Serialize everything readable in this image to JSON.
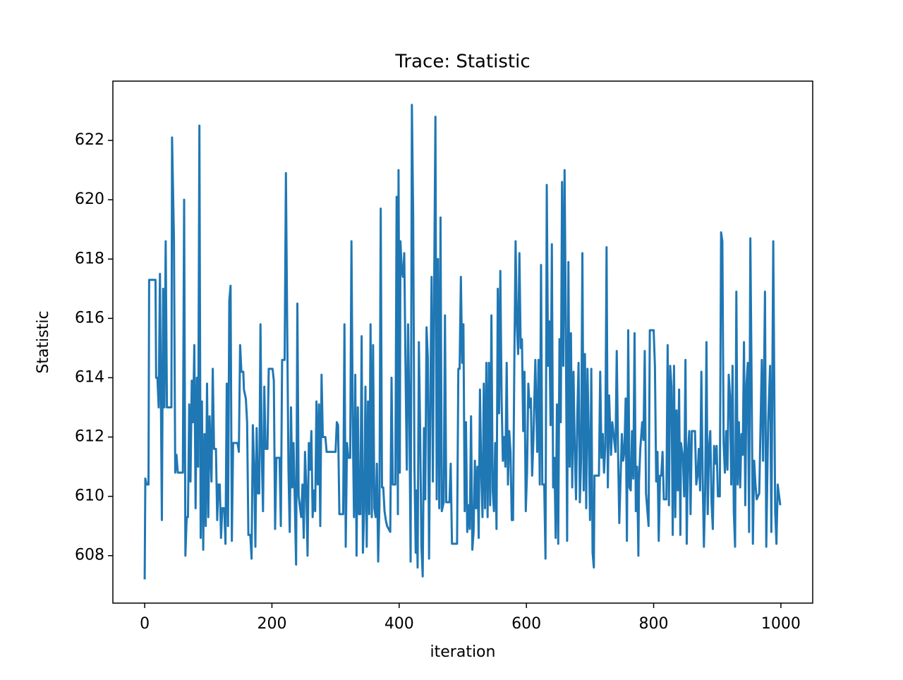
{
  "chart_data": {
    "type": "line",
    "title": "Trace: Statistic",
    "xlabel": "iteration",
    "ylabel": "Statistic",
    "x": [
      0,
      1,
      3,
      6,
      7,
      17,
      18,
      20,
      22,
      24,
      27,
      29,
      31,
      33,
      35,
      42,
      43,
      46,
      48,
      50,
      52,
      60,
      62,
      64,
      66,
      68,
      70,
      72,
      74,
      76,
      78,
      80,
      82,
      84,
      86,
      88,
      90,
      92,
      94,
      96,
      98,
      100,
      102,
      105,
      107,
      109,
      112,
      114,
      116,
      118,
      120,
      122,
      125,
      127,
      129,
      131,
      133,
      135,
      137,
      139,
      146,
      148,
      150,
      152,
      155,
      156,
      159,
      161,
      163,
      166,
      168,
      170,
      172,
      174,
      176,
      178,
      180,
      182,
      184,
      186,
      188,
      190,
      193,
      195,
      201,
      203,
      205,
      207,
      212,
      214,
      216,
      220,
      222,
      224,
      226,
      228,
      230,
      232,
      234,
      238,
      240,
      242,
      246,
      248,
      250,
      252,
      254,
      256,
      258,
      260,
      262,
      264,
      266,
      268,
      270,
      272,
      274,
      276,
      278,
      280,
      284,
      286,
      300,
      302,
      304,
      306,
      312,
      314,
      316,
      318,
      320,
      323,
      325,
      327,
      329,
      331,
      333,
      335,
      337,
      339,
      341,
      343,
      345,
      347,
      349,
      351,
      353,
      355,
      357,
      359,
      361,
      363,
      365,
      367,
      369,
      371,
      373,
      375,
      377,
      379,
      381,
      386,
      388,
      390,
      394,
      396,
      398,
      399,
      401,
      402,
      404,
      406,
      408,
      410,
      412,
      414,
      416,
      418,
      420,
      422,
      424,
      426,
      427,
      429,
      431,
      433,
      435,
      437,
      439,
      441,
      443,
      445,
      447,
      449,
      451,
      453,
      455,
      457,
      459,
      461,
      463,
      465,
      467,
      470,
      472,
      474,
      479,
      481,
      483,
      491,
      493,
      495,
      497,
      499,
      501,
      503,
      505,
      507,
      509,
      511,
      513,
      515,
      517,
      519,
      521,
      523,
      525,
      527,
      529,
      531,
      533,
      535,
      537,
      539,
      541,
      543,
      545,
      547,
      549,
      551,
      553,
      555,
      557,
      559,
      561,
      563,
      565,
      567,
      569,
      571,
      573,
      575,
      577,
      579,
      581,
      583,
      585,
      587,
      589,
      591,
      593,
      595,
      597,
      599,
      601,
      603,
      605,
      607,
      609,
      611,
      614,
      617,
      619,
      621,
      623,
      625,
      628,
      630,
      632,
      634,
      636,
      638,
      640,
      642,
      644,
      646,
      648,
      650,
      652,
      654,
      656,
      658,
      660,
      662,
      664,
      666,
      668,
      670,
      672,
      674,
      676,
      678,
      680,
      682,
      684,
      686,
      688,
      690,
      692,
      694,
      696,
      698,
      700,
      702,
      704,
      706,
      707,
      714,
      716,
      718,
      720,
      722,
      724,
      726,
      728,
      730,
      733,
      735,
      738,
      740,
      742,
      744,
      746,
      750,
      752,
      754,
      756,
      758,
      760,
      762,
      764,
      766,
      768,
      770,
      772,
      774,
      776,
      777,
      779,
      782,
      784,
      786,
      788,
      792,
      794,
      800,
      802,
      804,
      806,
      808,
      810,
      812,
      814,
      816,
      820,
      822,
      824,
      826,
      828,
      830,
      832,
      834,
      836,
      838,
      840,
      842,
      843,
      846,
      848,
      850,
      852,
      854,
      856,
      858,
      860,
      865,
      867,
      869,
      871,
      873,
      875,
      877,
      879,
      881,
      883,
      885,
      887,
      889,
      891,
      893,
      895,
      897,
      899,
      901,
      904,
      906,
      908,
      910,
      912,
      914,
      916,
      918,
      920,
      922,
      924,
      926,
      928,
      930,
      932,
      934,
      936,
      938,
      940,
      942,
      944,
      946,
      948,
      950,
      952,
      954,
      956,
      958,
      960,
      962,
      966,
      970,
      972,
      975,
      977,
      980,
      983,
      985,
      988,
      991,
      993,
      995,
      999
    ],
    "values": [
      607.2,
      610.6,
      610.4,
      610.4,
      617.3,
      617.3,
      614,
      614,
      613,
      617.5,
      609.2,
      617,
      613,
      618.6,
      613,
      613,
      622.1,
      618.7,
      610.8,
      611.4,
      610.8,
      610.8,
      620,
      608,
      609.3,
      609.3,
      613.1,
      610.5,
      613.9,
      612.5,
      615.1,
      609.6,
      614,
      611,
      622.5,
      608.6,
      613.2,
      608.2,
      612.1,
      609,
      613.8,
      609.3,
      612.7,
      610.5,
      614.3,
      611.6,
      611.6,
      609.2,
      610.4,
      610.4,
      608.6,
      609.6,
      609.6,
      608.4,
      613.8,
      609,
      616.6,
      617.1,
      608.5,
      611.8,
      611.8,
      611.5,
      615.1,
      614.2,
      614.2,
      613.6,
      613.3,
      612.5,
      608.7,
      608.7,
      607.9,
      612.4,
      611.1,
      608.3,
      612.3,
      610.1,
      610.1,
      615.8,
      611.4,
      609.5,
      613.7,
      611.6,
      611.6,
      614.3,
      614.3,
      613.9,
      608.9,
      611.3,
      611.3,
      609,
      614.6,
      614.6,
      620.9,
      615.7,
      610.9,
      608.8,
      613,
      610.3,
      611.8,
      607.7,
      616.5,
      610,
      609.3,
      610.4,
      608.6,
      611.5,
      610.3,
      608,
      611.8,
      610.9,
      612.2,
      609.3,
      610.2,
      609.5,
      613.2,
      610.4,
      613.1,
      609,
      614.1,
      612,
      612,
      611.5,
      611.5,
      612.5,
      612.4,
      609.4,
      609.4,
      615.8,
      608.3,
      611.8,
      611.3,
      611.3,
      618.6,
      612.6,
      609.3,
      614.1,
      608,
      613,
      609.4,
      609.4,
      615.4,
      608.1,
      609.5,
      613.7,
      608.3,
      613.2,
      609.4,
      615.8,
      609.3,
      615.1,
      609.6,
      609.3,
      611.1,
      607.8,
      609.7,
      619.7,
      610.3,
      610.3,
      609.5,
      609.2,
      609,
      608.8,
      614,
      610.4,
      610.4,
      620.1,
      609.4,
      621,
      610.8,
      618.6,
      617.6,
      617.4,
      618.2,
      614.3,
      610.9,
      615.8,
      612.9,
      607.8,
      623.2,
      619.5,
      611,
      608.1,
      610.2,
      607.6,
      615.2,
      612.2,
      608.3,
      607.3,
      612.3,
      609.9,
      615.7,
      614.7,
      607.9,
      613.3,
      617.4,
      610.5,
      617.1,
      622.8,
      609.9,
      618,
      609.6,
      619.4,
      609.5,
      609.8,
      616.1,
      609.8,
      609.8,
      611.1,
      608.4,
      608.4,
      614.3,
      614.3,
      617.4,
      614.5,
      615.8,
      609.5,
      612.5,
      608.8,
      609.7,
      608.9,
      612.7,
      608.2,
      608.8,
      611.2,
      609.6,
      611,
      608.6,
      613.6,
      610.8,
      609.3,
      613.8,
      609.6,
      614.5,
      609.3,
      614.5,
      609.7,
      616.1,
      610.2,
      609.5,
      611.8,
      608.9,
      617,
      612.8,
      617.6,
      613.3,
      611.2,
      612,
      611,
      614.5,
      610.4,
      612.2,
      611.5,
      609.2,
      609.2,
      614.5,
      618.6,
      615.8,
      614.8,
      618.2,
      615,
      615.3,
      612.2,
      614.2,
      609.5,
      610.8,
      613.8,
      613,
      613.3,
      610.7,
      611.9,
      614.6,
      611.5,
      614.6,
      610.4,
      617.8,
      610.4,
      610.4,
      607.9,
      620.5,
      614.4,
      615.9,
      612.4,
      618.5,
      610.3,
      611.3,
      608.6,
      613.1,
      608.4,
      615.3,
      612.5,
      620.6,
      614.4,
      621,
      615.6,
      608.5,
      617.9,
      611,
      615.5,
      610.3,
      614.2,
      611.6,
      609.9,
      612.7,
      614.5,
      609.8,
      611.3,
      618.2,
      610.2,
      614.8,
      609.6,
      614.3,
      612,
      609.2,
      614.3,
      608.1,
      607.6,
      610.7,
      610.7,
      614.2,
      611.3,
      612.1,
      610.8,
      611.7,
      618.4,
      610.3,
      613.4,
      611.4,
      612.5,
      611.9,
      611.5,
      614.9,
      611.6,
      609.1,
      612.1,
      611.2,
      611.5,
      613.3,
      608.5,
      615.6,
      610.3,
      610.2,
      612.2,
      610.6,
      615.5,
      609.5,
      611,
      608,
      610.5,
      611.6,
      612.5,
      611.9,
      614.9,
      610.1,
      609,
      615.6,
      615.6,
      614.4,
      610.5,
      611.5,
      608.5,
      610.7,
      610.7,
      611.5,
      609.9,
      609.9,
      615.1,
      609.7,
      614.4,
      613.7,
      608.7,
      614.4,
      609.3,
      612.9,
      610.2,
      613.6,
      608.7,
      611.8,
      611.3,
      610,
      614.6,
      608.4,
      611.5,
      612.2,
      609.4,
      612.2,
      612.2,
      610.4,
      610.7,
      611.6,
      610.2,
      614.2,
      610.7,
      608.3,
      610.2,
      615.2,
      609.4,
      611.6,
      612.2,
      609.8,
      608.9,
      611.7,
      611.1,
      611.7,
      610,
      610,
      618.9,
      618.6,
      611.8,
      610.8,
      612.2,
      610.9,
      614.1,
      613.4,
      610.4,
      614.4,
      609.5,
      608.3,
      616.9,
      610.4,
      612.5,
      610.3,
      612.1,
      611.4,
      615.2,
      609.7,
      613.8,
      614.5,
      608.8,
      618.7,
      613.8,
      608.4,
      611.2,
      610.4,
      609.9,
      610.1,
      614.6,
      611.2,
      616.9,
      608.3,
      612.5,
      614.4,
      608.8,
      618.6,
      609.5,
      608.4,
      610.4,
      609.7
    ],
    "color": "#1f77b4",
    "xlim": [
      -50,
      1050
    ],
    "ylim": [
      606.4,
      624
    ],
    "xticks": [
      0,
      200,
      400,
      600,
      800,
      1000
    ],
    "yticks": [
      608,
      610,
      612,
      614,
      616,
      618,
      620,
      622
    ]
  }
}
